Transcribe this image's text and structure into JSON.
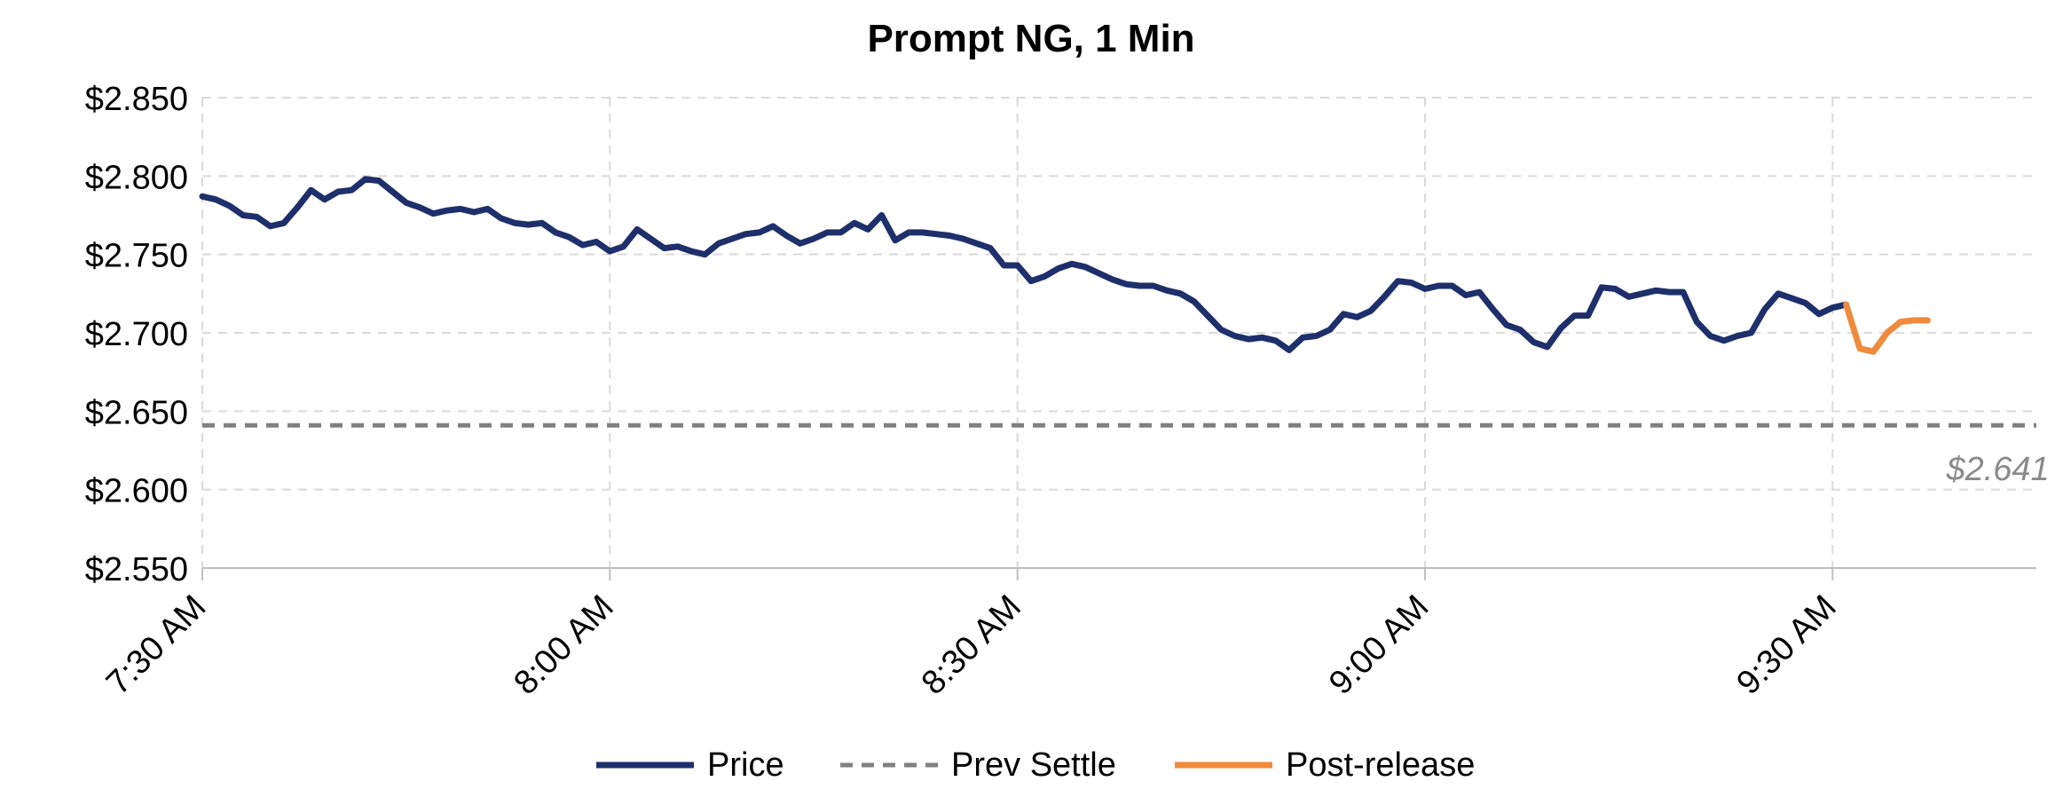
{
  "chart_data": {
    "type": "line",
    "title": "Prompt NG, 1 Min",
    "xlabel": "",
    "ylabel": "",
    "x_unit": "minutes",
    "x_start_label": "7:30 AM",
    "xlim": [
      0,
      135
    ],
    "ylim": [
      2.55,
      2.85
    ],
    "y_ticks": [
      2.55,
      2.6,
      2.65,
      2.7,
      2.75,
      2.8,
      2.85
    ],
    "y_tick_labels": [
      "$2.550",
      "$2.600",
      "$2.650",
      "$2.700",
      "$2.750",
      "$2.800",
      "$2.850"
    ],
    "x_ticks": [
      0,
      30,
      60,
      90,
      120
    ],
    "x_tick_labels": [
      "7:30 AM",
      "8:00 AM",
      "8:30 AM",
      "9:00 AM",
      "9:30 AM"
    ],
    "grid": true,
    "legend_position": "bottom",
    "series": [
      {
        "name": "Price",
        "color": "#1f2f6b",
        "style": "solid",
        "x": [
          0,
          1,
          2,
          3,
          4,
          5,
          6,
          7,
          8,
          9,
          10,
          11,
          12,
          13,
          14,
          15,
          16,
          17,
          18,
          19,
          20,
          21,
          22,
          23,
          24,
          25,
          26,
          27,
          28,
          29,
          30,
          31,
          32,
          33,
          34,
          35,
          36,
          37,
          38,
          39,
          40,
          41,
          42,
          43,
          44,
          45,
          46,
          47,
          48,
          49,
          50,
          51,
          52,
          53,
          54,
          55,
          56,
          57,
          58,
          59,
          60,
          61,
          62,
          63,
          64,
          65,
          66,
          67,
          68,
          69,
          70,
          71,
          72,
          73,
          74,
          75,
          76,
          77,
          78,
          79,
          80,
          81,
          82,
          83,
          84,
          85,
          86,
          87,
          88,
          89,
          90,
          91,
          92,
          93,
          94,
          95,
          96,
          97,
          98,
          99,
          100,
          101,
          102,
          103,
          104,
          105,
          106,
          107,
          108,
          109,
          110,
          111,
          112,
          113,
          114,
          115,
          116,
          117,
          118,
          119,
          120,
          121
        ],
        "values": [
          2.787,
          2.785,
          2.781,
          2.775,
          2.774,
          2.768,
          2.77,
          2.78,
          2.791,
          2.785,
          2.79,
          2.791,
          2.798,
          2.797,
          2.79,
          2.783,
          2.78,
          2.776,
          2.778,
          2.779,
          2.777,
          2.779,
          2.773,
          2.77,
          2.769,
          2.77,
          2.764,
          2.761,
          2.756,
          2.758,
          2.752,
          2.755,
          2.766,
          2.76,
          2.754,
          2.755,
          2.752,
          2.75,
          2.757,
          2.76,
          2.763,
          2.764,
          2.768,
          2.762,
          2.757,
          2.76,
          2.764,
          2.764,
          2.77,
          2.766,
          2.775,
          2.759,
          2.764,
          2.764,
          2.763,
          2.762,
          2.76,
          2.757,
          2.754,
          2.743,
          2.743,
          2.733,
          2.736,
          2.741,
          2.744,
          2.742,
          2.738,
          2.734,
          2.731,
          2.73,
          2.73,
          2.727,
          2.725,
          2.72,
          2.711,
          2.702,
          2.698,
          2.696,
          2.697,
          2.695,
          2.689,
          2.697,
          2.698,
          2.702,
          2.712,
          2.71,
          2.714,
          2.723,
          2.733,
          2.732,
          2.728,
          2.73,
          2.73,
          2.724,
          2.726,
          2.715,
          2.705,
          2.702,
          2.694,
          2.691,
          2.703,
          2.711,
          2.711,
          2.729,
          2.728,
          2.723,
          2.725,
          2.727,
          2.726,
          2.726,
          2.707,
          2.698,
          2.695,
          2.698,
          2.7,
          2.715,
          2.725,
          2.722,
          2.719,
          2.712,
          2.716,
          2.718
        ]
      },
      {
        "name": "Prev Settle",
        "color": "#808080",
        "style": "dashed",
        "x": [
          0,
          135
        ],
        "values": [
          2.641,
          2.641
        ]
      },
      {
        "name": "Post-release",
        "color": "#f08a3c",
        "style": "solid",
        "x": [
          121,
          122,
          123,
          124,
          125,
          126,
          127
        ],
        "values": [
          2.718,
          2.69,
          2.688,
          2.7,
          2.707,
          2.708,
          2.708
        ]
      }
    ],
    "annotations": [
      {
        "text": "$2.641",
        "x": 134,
        "y": 2.641,
        "color": "#8a8a8a",
        "italic": true
      }
    ]
  }
}
